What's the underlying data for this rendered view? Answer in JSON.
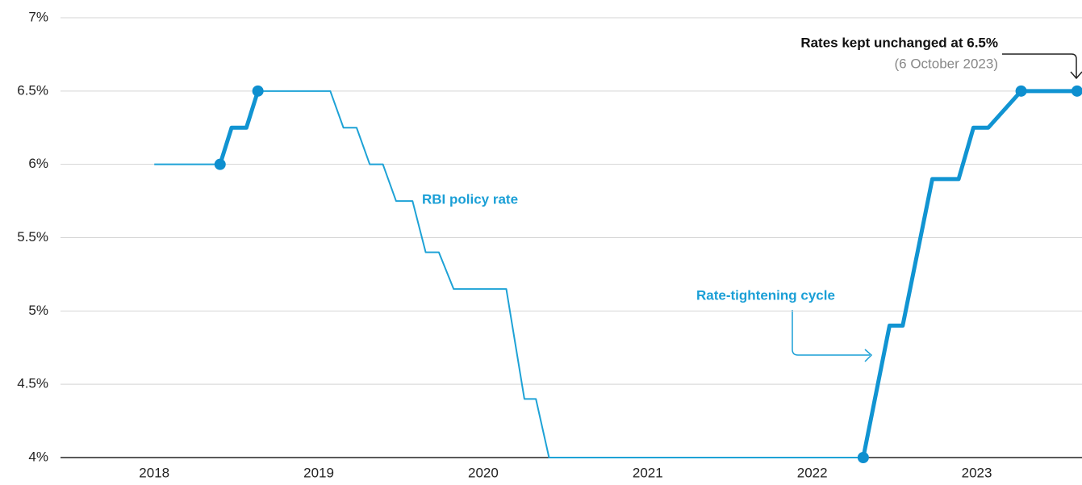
{
  "chart_data": {
    "type": "line",
    "x": [
      2018.0,
      2018.4,
      2018.47,
      2018.56,
      2018.63,
      2019.07,
      2019.15,
      2019.23,
      2019.31,
      2019.39,
      2019.47,
      2019.57,
      2019.65,
      2019.73,
      2019.82,
      2020.14,
      2020.25,
      2020.32,
      2020.4,
      2022.31,
      2022.47,
      2022.55,
      2022.73,
      2022.89,
      2022.98,
      2023.07,
      2023.27,
      2023.61
    ],
    "series": [
      {
        "name": "RBI policy rate",
        "color": "#1ea2d6",
        "values": [
          6,
          6,
          6.25,
          6.25,
          6.5,
          6.5,
          6.25,
          6.25,
          6,
          6,
          5.75,
          5.75,
          5.4,
          5.4,
          5.15,
          5.15,
          4.4,
          4.4,
          4,
          4,
          4.9,
          4.9,
          5.9,
          5.9,
          6.25,
          6.25,
          6.5,
          6.5
        ]
      },
      {
        "name": "Rate-tightening cycle",
        "color": "#1194d2",
        "values": [
          null,
          6,
          6.25,
          6.25,
          6.5,
          null,
          null,
          null,
          null,
          null,
          null,
          null,
          null,
          null,
          null,
          null,
          null,
          null,
          null,
          4,
          4.9,
          4.9,
          5.9,
          5.9,
          6.25,
          6.25,
          6.5,
          6.5
        ]
      }
    ],
    "markers": {
      "color": "#0e8fcf",
      "x": [
        2018.4,
        2018.63,
        2022.31,
        2023.27,
        2023.61
      ],
      "values": [
        6,
        6.5,
        4,
        6.5,
        6.5
      ]
    },
    "annotations": [
      "Rates kept unchanged at 6.5%",
      "(6 October 2023)"
    ],
    "xlim": [
      2017.43,
      2023.64
    ],
    "xticks": [
      2018,
      2019,
      2020,
      2021,
      2022,
      2023
    ],
    "ylim": [
      4,
      7
    ],
    "yticks": [
      {
        "value": 4,
        "label": "4%"
      },
      {
        "value": 4.5,
        "label": "4.5%"
      },
      {
        "value": 5,
        "label": "5%"
      },
      {
        "value": 5.5,
        "label": "5.5%"
      },
      {
        "value": 6,
        "label": "6%"
      },
      {
        "value": 6.5,
        "label": "6.5%"
      },
      {
        "value": 7,
        "label": "7%"
      }
    ],
    "grid": true
  }
}
